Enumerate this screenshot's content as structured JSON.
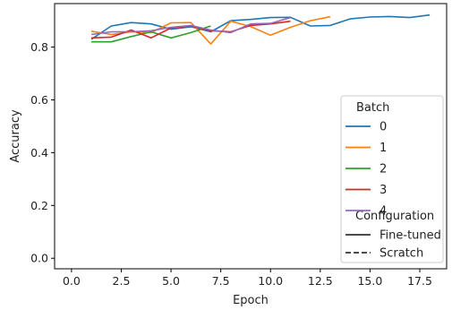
{
  "chart_data": {
    "type": "line",
    "xlabel": "Epoch",
    "ylabel": "Accuracy",
    "xlim": [
      -0.85,
      18.85
    ],
    "ylim": [
      -0.04,
      0.965
    ],
    "xticks": [
      0.0,
      2.5,
      5.0,
      7.5,
      10.0,
      12.5,
      15.0,
      17.5
    ],
    "xtick_labels": [
      "0.0",
      "2.5",
      "5.0",
      "7.5",
      "10.0",
      "12.5",
      "15.0",
      "17.5"
    ],
    "yticks": [
      0.0,
      0.2,
      0.4,
      0.6,
      0.8
    ],
    "ytick_labels": [
      "0.0",
      "0.2",
      "0.4",
      "0.6",
      "0.8"
    ],
    "grid": false,
    "legend_placement": "lower-right",
    "legend": {
      "hue_title": "Batch",
      "style_title": "Configuration",
      "style_entries": [
        {
          "label": "Fine-tuned",
          "dash": "solid"
        },
        {
          "label": "Scratch",
          "dash": "dashed"
        }
      ]
    },
    "series": [
      {
        "name": "0",
        "color": "#1f77b4",
        "x": [
          1,
          2,
          3,
          4,
          5,
          6,
          7,
          8,
          9,
          10,
          11,
          12,
          13,
          14,
          15,
          16,
          17,
          18
        ],
        "y": [
          0.83,
          0.88,
          0.893,
          0.888,
          0.868,
          0.877,
          0.858,
          0.9,
          0.905,
          0.912,
          0.913,
          0.88,
          0.882,
          0.907,
          0.914,
          0.916,
          0.912,
          0.922
        ]
      },
      {
        "name": "1",
        "color": "#ff7f0e",
        "x": [
          1,
          2,
          3,
          4,
          5,
          6,
          7,
          8,
          9,
          10,
          11,
          12,
          13
        ],
        "y": [
          0.86,
          0.848,
          0.858,
          0.855,
          0.892,
          0.893,
          0.812,
          0.898,
          0.878,
          0.845,
          0.875,
          0.9,
          0.915
        ]
      },
      {
        "name": "2",
        "color": "#2ca02c",
        "x": [
          1,
          2,
          3,
          4,
          5,
          6,
          7
        ],
        "y": [
          0.82,
          0.82,
          0.84,
          0.858,
          0.835,
          0.855,
          0.88
        ]
      },
      {
        "name": "3",
        "color": "#d62728",
        "x": [
          1,
          2,
          3,
          4,
          5,
          6,
          7,
          8,
          9,
          10,
          11
        ],
        "y": [
          0.835,
          0.838,
          0.865,
          0.835,
          0.873,
          0.88,
          0.862,
          0.858,
          0.882,
          0.888,
          0.898
        ]
      },
      {
        "name": "4",
        "color": "#9467bd",
        "x": [
          1,
          2,
          3,
          4,
          5,
          6,
          7,
          8,
          9,
          10,
          11
        ],
        "y": [
          0.848,
          0.858,
          0.858,
          0.862,
          0.875,
          0.882,
          0.865,
          0.855,
          0.888,
          0.89,
          0.912
        ]
      }
    ]
  }
}
